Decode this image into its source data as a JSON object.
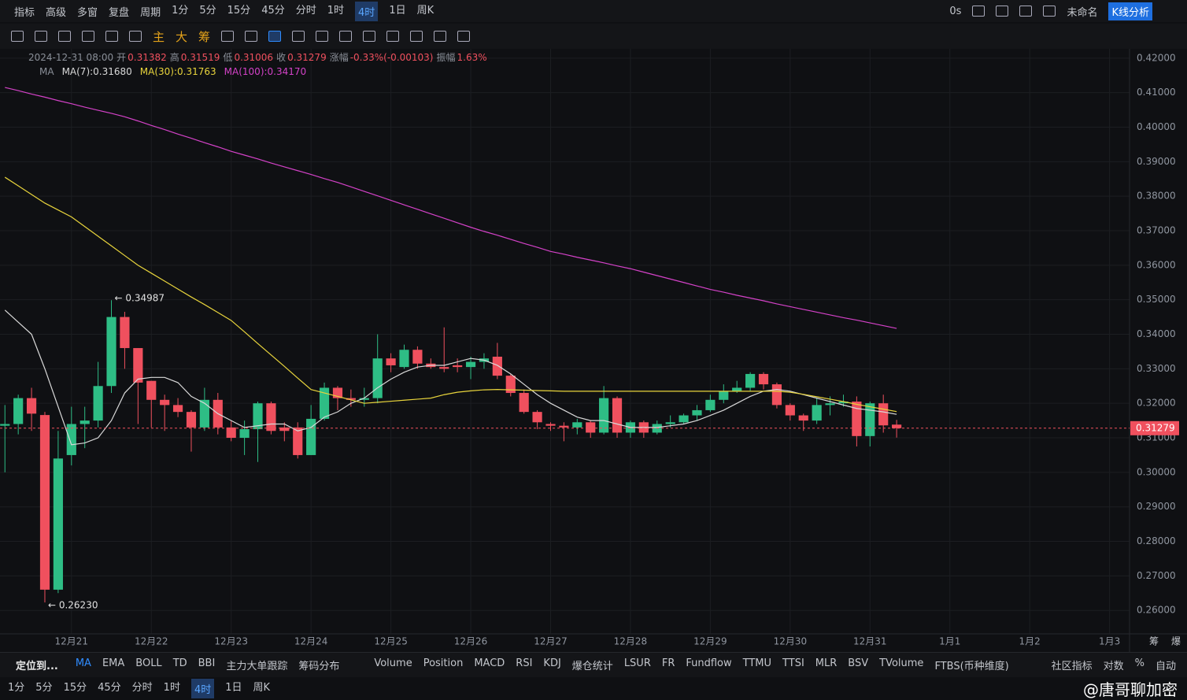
{
  "toolbar": {
    "menu": [
      "指标",
      "高级",
      "多窗",
      "复盘",
      "周期"
    ],
    "periods": [
      "1分",
      "5分",
      "15分",
      "45分",
      "分时",
      "1时",
      "4时",
      "1日",
      "周K"
    ],
    "active_period": "4时",
    "countdown": "0s",
    "layout_name": "未命名",
    "analysis_button": "K线分析",
    "draw_labels": [
      "主",
      "大",
      "筹"
    ]
  },
  "chart_data": {
    "type": "candlestick",
    "info": {
      "time": "2024-12-31 08:00",
      "fields": [
        [
          "开",
          "0.31382"
        ],
        [
          "高",
          "0.31519"
        ],
        [
          "低",
          "0.31006"
        ],
        [
          "收",
          "0.31279"
        ],
        [
          "涨幅",
          "-0.33%(-0.00103)"
        ],
        [
          "振幅",
          "1.63%"
        ]
      ]
    },
    "indicator_name": "MA",
    "up_color": "#2ebd85",
    "down_color": "#f0505e",
    "grid": true,
    "ylim": [
      0.2532,
      0.4227
    ],
    "yticks": [
      {
        "value": 0.26,
        "label": "0.26000"
      },
      {
        "value": 0.27,
        "label": "0.27000"
      },
      {
        "value": 0.28,
        "label": "0.28000"
      },
      {
        "value": 0.29,
        "label": "0.29000"
      },
      {
        "value": 0.3,
        "label": "0.30000"
      },
      {
        "value": 0.31,
        "label": "0.31000"
      },
      {
        "value": 0.32,
        "label": "0.32000"
      },
      {
        "value": 0.33,
        "label": "0.33000"
      },
      {
        "value": 0.34,
        "label": "0.34000"
      },
      {
        "value": 0.35,
        "label": "0.35000"
      },
      {
        "value": 0.36,
        "label": "0.36000"
      },
      {
        "value": 0.37,
        "label": "0.37000"
      },
      {
        "value": 0.38,
        "label": "0.38000"
      },
      {
        "value": 0.39,
        "label": "0.39000"
      },
      {
        "value": 0.4,
        "label": "0.40000"
      },
      {
        "value": 0.41,
        "label": "0.41000"
      },
      {
        "value": 0.42,
        "label": "0.42000"
      }
    ],
    "xlim": [
      -0.37,
      84.5
    ],
    "xticks": [
      {
        "value": 5,
        "label": "12月21"
      },
      {
        "value": 11,
        "label": "12月22"
      },
      {
        "value": 17,
        "label": "12月23"
      },
      {
        "value": 23,
        "label": "12月24"
      },
      {
        "value": 29,
        "label": "12月25"
      },
      {
        "value": 35,
        "label": "12月26"
      },
      {
        "value": 41,
        "label": "12月27"
      },
      {
        "value": 47,
        "label": "12月28"
      },
      {
        "value": 53,
        "label": "12月29"
      },
      {
        "value": 59,
        "label": "12月30"
      },
      {
        "value": 65,
        "label": "12月31"
      },
      {
        "value": 71,
        "label": "1月1"
      },
      {
        "value": 77,
        "label": "1月2"
      },
      {
        "value": 83,
        "label": "1月3"
      }
    ],
    "open": [
      0.3135,
      0.314,
      0.3215,
      0.3166,
      0.266,
      0.305,
      0.314,
      0.315,
      0.325,
      0.345,
      0.336,
      0.3265,
      0.321,
      0.3195,
      0.3175,
      0.313,
      0.321,
      0.313,
      0.31,
      0.3125,
      0.32,
      0.313,
      0.313,
      0.305,
      0.3155,
      0.3245,
      0.3215,
      0.321,
      0.3215,
      0.333,
      0.3305,
      0.3355,
      0.3315,
      0.3305,
      0.331,
      0.3305,
      0.332,
      0.3335,
      0.328,
      0.323,
      0.3175,
      0.314,
      0.3135,
      0.313,
      0.3145,
      0.3115,
      0.3215,
      0.3115,
      0.3145,
      0.3115,
      0.314,
      0.3145,
      0.3165,
      0.318,
      0.321,
      0.3235,
      0.3245,
      0.3285,
      0.3255,
      0.3195,
      0.3165,
      0.315,
      0.3195,
      0.32,
      0.3205,
      0.3105,
      0.32,
      0.31382
    ],
    "high": [
      0.3195,
      0.3225,
      0.3245,
      0.3175,
      0.312,
      0.319,
      0.319,
      0.332,
      0.34987,
      0.3465,
      0.336,
      0.3265,
      0.3225,
      0.3215,
      0.318,
      0.3245,
      0.323,
      0.315,
      0.315,
      0.3205,
      0.3205,
      0.3145,
      0.3145,
      0.3195,
      0.326,
      0.325,
      0.324,
      0.3245,
      0.34,
      0.3345,
      0.337,
      0.3365,
      0.333,
      0.342,
      0.333,
      0.3335,
      0.3345,
      0.3375,
      0.3285,
      0.324,
      0.318,
      0.3145,
      0.3145,
      0.3155,
      0.315,
      0.325,
      0.322,
      0.315,
      0.315,
      0.315,
      0.3165,
      0.317,
      0.3195,
      0.3225,
      0.3255,
      0.3265,
      0.329,
      0.329,
      0.326,
      0.32,
      0.317,
      0.3215,
      0.322,
      0.3225,
      0.322,
      0.3205,
      0.3225,
      0.31519
    ],
    "low": [
      0.3,
      0.311,
      0.312,
      0.2623,
      0.265,
      0.302,
      0.307,
      0.313,
      0.323,
      0.33,
      0.314,
      0.313,
      0.312,
      0.316,
      0.306,
      0.312,
      0.311,
      0.309,
      0.305,
      0.303,
      0.311,
      0.309,
      0.304,
      0.305,
      0.315,
      0.318,
      0.319,
      0.319,
      0.32,
      0.329,
      0.33,
      0.33,
      0.33,
      0.329,
      0.329,
      0.327,
      0.33,
      0.327,
      0.322,
      0.317,
      0.3125,
      0.312,
      0.309,
      0.311,
      0.31,
      0.311,
      0.31,
      0.31,
      0.31,
      0.311,
      0.313,
      0.314,
      0.315,
      0.3175,
      0.32,
      0.323,
      0.3235,
      0.324,
      0.3185,
      0.315,
      0.312,
      0.314,
      0.3165,
      0.319,
      0.3075,
      0.3075,
      0.3115,
      0.31006
    ],
    "close": [
      0.314,
      0.3215,
      0.317,
      0.266,
      0.304,
      0.314,
      0.315,
      0.325,
      0.345,
      0.336,
      0.326,
      0.321,
      0.3195,
      0.3175,
      0.313,
      0.321,
      0.313,
      0.31,
      0.3125,
      0.32,
      0.312,
      0.312,
      0.305,
      0.3155,
      0.3245,
      0.3215,
      0.321,
      0.3215,
      0.333,
      0.331,
      0.3355,
      0.3315,
      0.3305,
      0.33,
      0.3305,
      0.332,
      0.333,
      0.328,
      0.323,
      0.3175,
      0.3145,
      0.3135,
      0.313,
      0.3145,
      0.3115,
      0.3215,
      0.3115,
      0.3145,
      0.3115,
      0.314,
      0.3145,
      0.3165,
      0.318,
      0.321,
      0.3235,
      0.3245,
      0.3285,
      0.3255,
      0.3195,
      0.3165,
      0.315,
      0.3195,
      0.32,
      0.3205,
      0.3105,
      0.32,
      0.3136,
      0.31279
    ],
    "series": [
      {
        "name": "MA(7):0.31680",
        "color": "#d9d9d9",
        "values": [
          0.347,
          0.3435,
          0.34,
          0.33,
          0.319,
          0.308,
          0.3085,
          0.31,
          0.315,
          0.323,
          0.327,
          0.3275,
          0.3275,
          0.326,
          0.322,
          0.32,
          0.317,
          0.315,
          0.313,
          0.3135,
          0.314,
          0.314,
          0.312,
          0.313,
          0.316,
          0.3175,
          0.32,
          0.3215,
          0.3245,
          0.327,
          0.329,
          0.3305,
          0.331,
          0.331,
          0.332,
          0.333,
          0.3325,
          0.331,
          0.3285,
          0.3255,
          0.3225,
          0.32,
          0.318,
          0.316,
          0.315,
          0.315,
          0.314,
          0.313,
          0.313,
          0.313,
          0.3135,
          0.314,
          0.315,
          0.3165,
          0.318,
          0.32,
          0.322,
          0.3235,
          0.324,
          0.3235,
          0.3225,
          0.3215,
          0.3205,
          0.3195,
          0.3185,
          0.318,
          0.3175,
          0.3168
        ]
      },
      {
        "name": "MA(30):0.31763",
        "color": "#e8d43c",
        "values": [
          0.3855,
          0.383,
          0.3805,
          0.378,
          0.376,
          0.374,
          0.3712,
          0.3684,
          0.3656,
          0.3628,
          0.36,
          0.3577,
          0.3554,
          0.3531,
          0.3508,
          0.3486,
          0.3463,
          0.344,
          0.3407,
          0.3373,
          0.334,
          0.3307,
          0.3273,
          0.324,
          0.323,
          0.322,
          0.321,
          0.32,
          0.3203,
          0.3206,
          0.3209,
          0.3212,
          0.3215,
          0.3225,
          0.3232,
          0.3236,
          0.3239,
          0.324,
          0.3239,
          0.3238,
          0.3237,
          0.3236,
          0.3235,
          0.3235,
          0.3235,
          0.3235,
          0.3235,
          0.3235,
          0.3235,
          0.3235,
          0.3235,
          0.3235,
          0.3235,
          0.3235,
          0.3235,
          0.3235,
          0.3235,
          0.3235,
          0.3235,
          0.3232,
          0.3226,
          0.3219,
          0.3212,
          0.3205,
          0.3197,
          0.319,
          0.3183,
          0.3176
        ]
      },
      {
        "name": "MA(100):0.34170",
        "color": "#d442c8",
        "values": [
          0.4115,
          0.4106,
          0.4096,
          0.4087,
          0.4077,
          0.4068,
          0.4058,
          0.4049,
          0.404,
          0.403,
          0.4018,
          0.4005,
          0.3993,
          0.398,
          0.3968,
          0.3955,
          0.3943,
          0.393,
          0.3919,
          0.3908,
          0.3896,
          0.3885,
          0.3874,
          0.3863,
          0.3851,
          0.384,
          0.3827,
          0.3814,
          0.3801,
          0.3788,
          0.3775,
          0.3762,
          0.3749,
          0.3736,
          0.3723,
          0.371,
          0.3698,
          0.3687,
          0.3675,
          0.3663,
          0.3652,
          0.364,
          0.3632,
          0.3623,
          0.3615,
          0.3607,
          0.3598,
          0.359,
          0.358,
          0.357,
          0.356,
          0.355,
          0.354,
          0.353,
          0.3522,
          0.3513,
          0.3505,
          0.3497,
          0.3488,
          0.348,
          0.3472,
          0.3464,
          0.3456,
          0.3448,
          0.3441,
          0.3433,
          0.3425,
          0.3417
        ]
      }
    ],
    "last_price": 0.31279,
    "annotations": [
      {
        "text": "← 0.34987",
        "x": 8,
        "value": 0.34987
      },
      {
        "text": "← 0.26230",
        "x": 3,
        "value": 0.2623
      }
    ],
    "axis_icons": [
      "筹",
      "爆"
    ]
  },
  "bottom_bar": {
    "locate": "定位到...",
    "main_indicators": [
      "MA",
      "EMA",
      "BOLL",
      "TD",
      "BBI",
      "主力大单跟踪",
      "筹码分布"
    ],
    "active_indicator": "MA",
    "sub_indicators": [
      "Volume",
      "Position",
      "MACD",
      "RSI",
      "KDJ",
      "爆仓统计",
      "LSUR",
      "FR",
      "Fundflow",
      "TTMU",
      "TTSI",
      "MLR",
      "BSV",
      "TVolume",
      "FTBS(币种维度)"
    ],
    "right": [
      "社区指标",
      "对数",
      "%",
      "自动"
    ]
  },
  "period_bar": [
    "1分",
    "5分",
    "15分",
    "45分",
    "分时",
    "1时",
    "4时",
    "1日",
    "周K"
  ],
  "watermark": "@唐哥聊加密"
}
